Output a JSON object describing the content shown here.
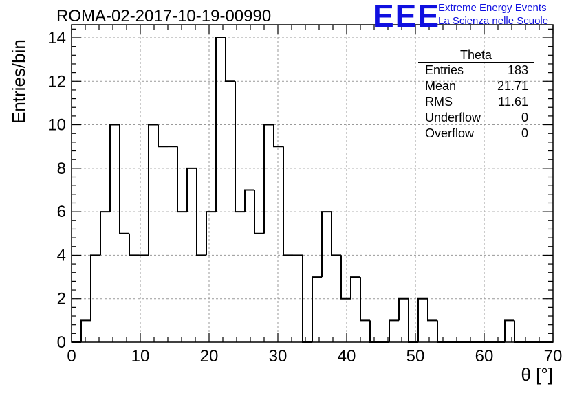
{
  "title": "ROMA-02-2017-10-19-00990",
  "logo": {
    "mark": "EEE",
    "line1": "Extreme Energy Events",
    "line2": "La Scienza nelle Scuole",
    "color": "#1010e0"
  },
  "stats": {
    "name": "Theta",
    "rows": [
      {
        "label": "Entries",
        "value": "183"
      },
      {
        "label": "Mean",
        "value": "21.71"
      },
      {
        "label": "RMS",
        "value": "11.61"
      },
      {
        "label": "Underflow",
        "value": "0"
      },
      {
        "label": "Overflow",
        "value": "0"
      }
    ]
  },
  "chart_data": {
    "type": "histogram",
    "xlabel": "θ [°]",
    "ylabel": "Entries/bin",
    "xlim": [
      0,
      70
    ],
    "ylim": [
      0,
      14.6
    ],
    "x_ticks": [
      0,
      10,
      20,
      30,
      40,
      50,
      60,
      70
    ],
    "y_ticks": [
      0,
      2,
      4,
      6,
      8,
      10,
      12,
      14
    ],
    "grid": true,
    "bin_width": 1.4,
    "bin_start": 0,
    "counts": [
      0,
      1,
      4,
      6,
      10,
      5,
      4,
      4,
      10,
      9,
      9,
      6,
      8,
      4,
      6,
      14,
      12,
      6,
      7,
      5,
      10,
      9,
      4,
      4,
      0,
      3,
      6,
      4,
      2,
      3,
      1,
      0,
      0,
      1,
      2,
      0,
      2,
      1,
      0,
      0,
      0,
      0,
      0,
      0,
      0,
      1,
      0,
      0,
      0,
      0
    ]
  }
}
